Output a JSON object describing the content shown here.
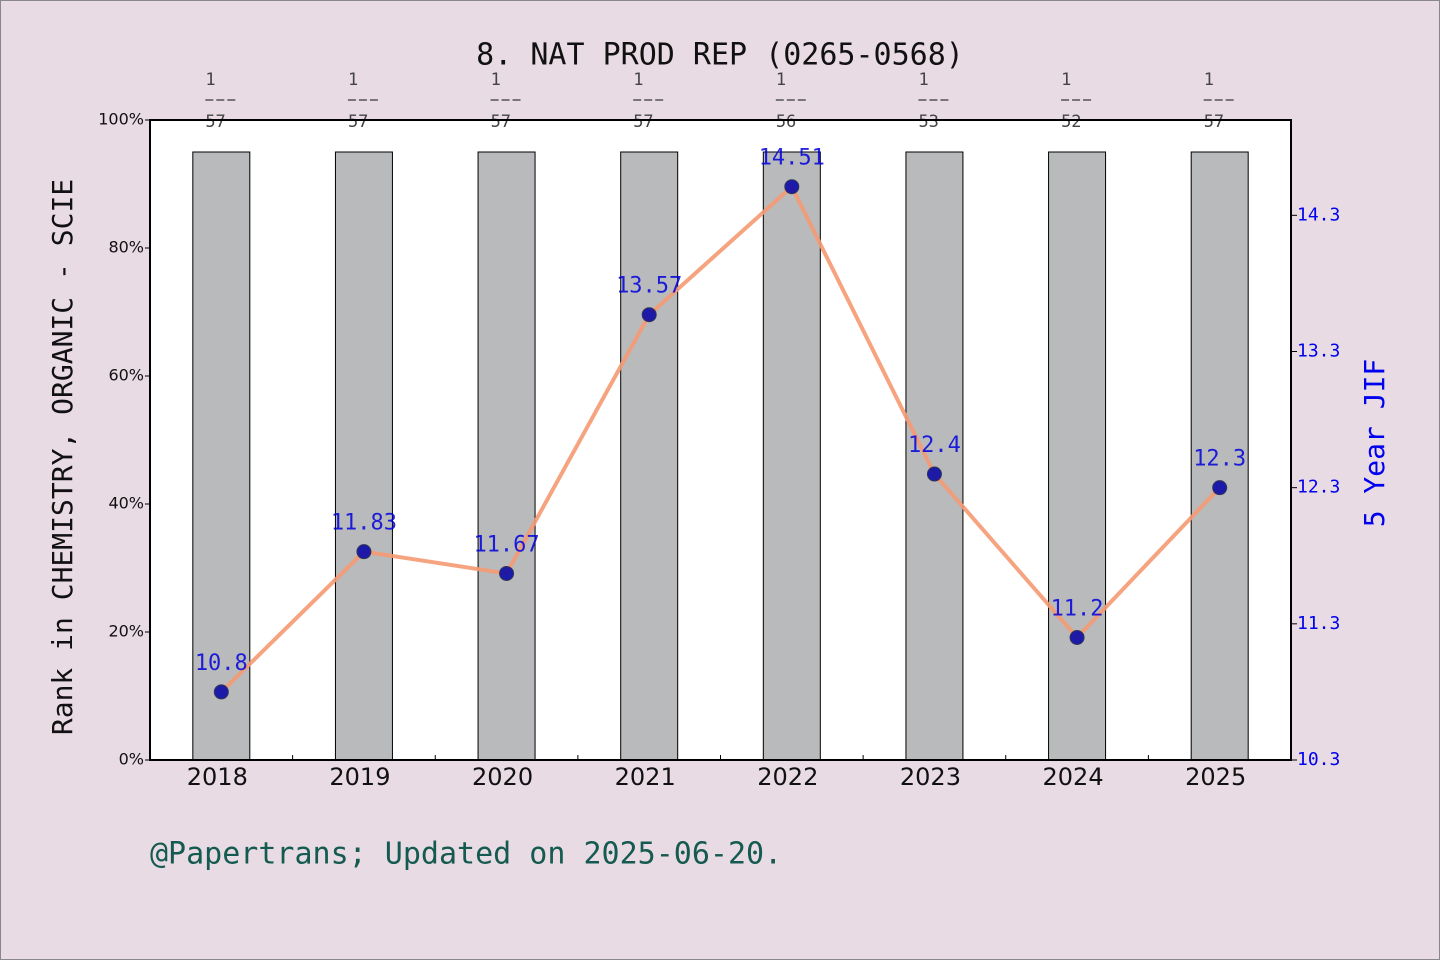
{
  "chart_data": {
    "type": "bar",
    "title": "8. NAT PROD REP (0265-0568)",
    "ylabel": "Rank in CHEMISTRY, ORGANIC - SCIE",
    "y2label": "5 Year JIF",
    "footer": "@Papertrans; Updated on 2025-06-20.",
    "categories": [
      "2018",
      "2019",
      "2020",
      "2021",
      "2022",
      "2023",
      "2024",
      "2025"
    ],
    "ranks": [
      1,
      1,
      1,
      1,
      1,
      1,
      1,
      1
    ],
    "totals": [
      57,
      57,
      57,
      57,
      56,
      53,
      52,
      57
    ],
    "series": [
      {
        "type": "bar",
        "color": "#b8babc",
        "values": [
          95,
          95,
          95,
          95,
          95,
          95,
          95,
          95
        ]
      },
      {
        "type": "line",
        "axis": "y2",
        "color": "#f59a72",
        "marker_color": "#0a0aa8",
        "label_color": "#0000dd",
        "values": [
          10.8,
          11.83,
          11.67,
          13.57,
          14.51,
          12.4,
          11.2,
          12.3
        ]
      }
    ],
    "ylim": [
      0,
      100
    ],
    "yticks": [
      {
        "value": 0,
        "label": "0%"
      },
      {
        "value": 20,
        "label": "20%"
      },
      {
        "value": 40,
        "label": "40%"
      },
      {
        "value": 60,
        "label": "60%"
      },
      {
        "value": 80,
        "label": "80%"
      },
      {
        "value": 100,
        "label": "100%"
      }
    ],
    "y2lim": [
      10.3,
      15.0
    ],
    "y2ticks": [
      10.3,
      11.3,
      12.3,
      13.3,
      14.3
    ],
    "y2_color": "#0000ee"
  }
}
